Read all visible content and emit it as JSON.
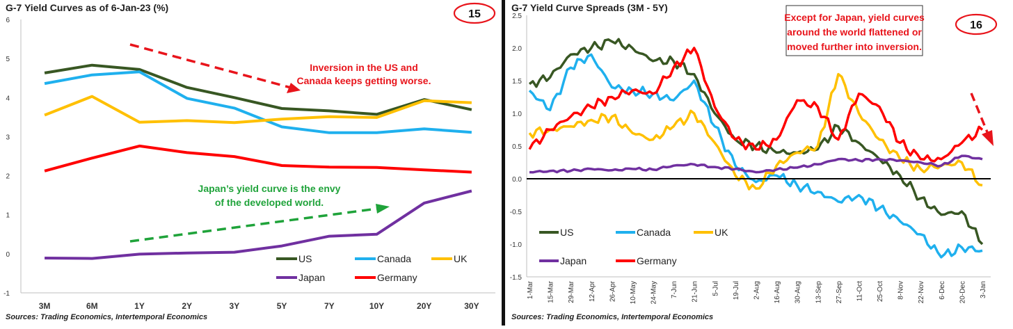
{
  "chart_data": [
    {
      "type": "line",
      "title": "G-7 Yield Curves as of 6-Jan-23 (%)",
      "badge": "15",
      "source": "Sources: Trading Economics, Intertemporal Economics",
      "categories": [
        "3M",
        "6M",
        "1Y",
        "2Y",
        "3Y",
        "5Y",
        "7Y",
        "10Y",
        "20Y",
        "30Y"
      ],
      "ylim": [
        -1,
        6
      ],
      "yticks": [
        "6",
        "5",
        "4",
        "3",
        "2",
        "1",
        "0",
        "-1"
      ],
      "grid": false,
      "legend_position": "bottom-right",
      "series": [
        {
          "name": "US",
          "color": "#385723",
          "values": [
            4.63,
            4.83,
            4.72,
            4.26,
            4.0,
            3.72,
            3.66,
            3.57,
            3.95,
            3.69
          ]
        },
        {
          "name": "Canada",
          "color": "#1fb0ee",
          "values": [
            4.36,
            4.58,
            4.66,
            3.98,
            3.73,
            3.25,
            3.1,
            3.1,
            3.2,
            3.11
          ]
        },
        {
          "name": "UK",
          "color": "#ffc000",
          "values": [
            3.55,
            4.03,
            3.37,
            3.41,
            3.36,
            3.45,
            3.51,
            3.49,
            3.92,
            3.87
          ]
        },
        {
          "name": "Japan",
          "color": "#7030a0",
          "values": [
            -0.11,
            -0.12,
            -0.01,
            0.02,
            0.04,
            0.2,
            0.45,
            0.5,
            1.3,
            1.61
          ]
        },
        {
          "name": "Germany",
          "color": "#ff0000",
          "values": [
            2.12,
            2.45,
            2.76,
            2.59,
            2.49,
            2.26,
            2.22,
            2.21,
            2.15,
            2.09
          ]
        }
      ],
      "annotations": [
        {
          "text": "Inversion in the US and",
          "color": "#e8141b"
        },
        {
          "text": "Canada keeps getting worse.",
          "color": "#e8141b"
        },
        {
          "text": "Japan’s yield curve is the envy",
          "color": "#1fa33a"
        },
        {
          "text": "of the developed world.",
          "color": "#1fa33a"
        }
      ]
    },
    {
      "type": "line",
      "title": "G-7 Yield Curve Spreads (3M - 5Y)",
      "badge": "16",
      "source": "Sources: Trading Economics, Intertemporal Economics",
      "categories": [
        "1-Mar",
        "15-Mar",
        "29-Mar",
        "12-Apr",
        "26-Apr",
        "10-May",
        "24-May",
        "7-Jun",
        "21-Jun",
        "5-Jul",
        "19-Jul",
        "2-Aug",
        "16-Aug",
        "30-Aug",
        "13-Sep",
        "27-Sep",
        "11-Oct",
        "25-Oct",
        "8-Nov",
        "22-Nov",
        "6-Dec",
        "20-Dec",
        "3-Jan"
      ],
      "ylim": [
        -1.5,
        2.5
      ],
      "yticks": [
        "2.5",
        "2.0",
        "1.5",
        "1.0",
        "0.5",
        "0.0",
        "-0.5",
        "-1.0",
        "-1.5"
      ],
      "grid": false,
      "legend_position": "bottom-left",
      "series": [
        {
          "name": "US",
          "color": "#385723",
          "values": [
            1.45,
            1.55,
            1.9,
            2.0,
            2.1,
            2.0,
            1.8,
            1.8,
            1.6,
            1.0,
            0.6,
            0.5,
            0.4,
            0.4,
            0.45,
            0.8,
            0.55,
            0.3,
            0.05,
            -0.3,
            -0.55,
            -0.5,
            -1.0
          ]
        },
        {
          "name": "Canada",
          "color": "#1fb0ee",
          "values": [
            1.35,
            1.05,
            1.7,
            1.9,
            1.4,
            1.35,
            1.3,
            1.2,
            1.5,
            0.8,
            0.2,
            -0.05,
            0.05,
            -0.1,
            -0.2,
            -0.35,
            -0.25,
            -0.45,
            -0.65,
            -0.85,
            -1.2,
            -1.05,
            -1.1
          ]
        },
        {
          "name": "UK",
          "color": "#ffc000",
          "values": [
            0.7,
            0.75,
            0.8,
            0.9,
            0.95,
            0.7,
            0.6,
            0.8,
            1.0,
            0.55,
            0.05,
            -0.15,
            0.2,
            0.4,
            0.5,
            1.6,
            1.0,
            0.6,
            0.3,
            0.15,
            0.2,
            0.25,
            -0.1
          ]
        },
        {
          "name": "Japan",
          "color": "#7030a0",
          "values": [
            0.1,
            0.12,
            0.12,
            0.15,
            0.13,
            0.15,
            0.14,
            0.2,
            0.22,
            0.18,
            0.15,
            0.1,
            0.14,
            0.17,
            0.22,
            0.3,
            0.28,
            0.3,
            0.28,
            0.25,
            0.2,
            0.35,
            0.3
          ]
        },
        {
          "name": "Germany",
          "color": "#ff0000",
          "values": [
            0.45,
            0.75,
            0.95,
            1.1,
            1.25,
            1.35,
            1.3,
            1.7,
            2.0,
            1.1,
            0.6,
            0.45,
            0.6,
            1.2,
            1.1,
            0.6,
            1.3,
            1.1,
            0.55,
            0.3,
            0.3,
            0.55,
            0.75
          ]
        }
      ],
      "annotations": [
        {
          "text": "Except for Japan, yield curves",
          "color": "#e8141b"
        },
        {
          "text": "around the world flattened or",
          "color": "#e8141b"
        },
        {
          "text": "moved further into inversion.",
          "color": "#e8141b"
        }
      ]
    }
  ]
}
